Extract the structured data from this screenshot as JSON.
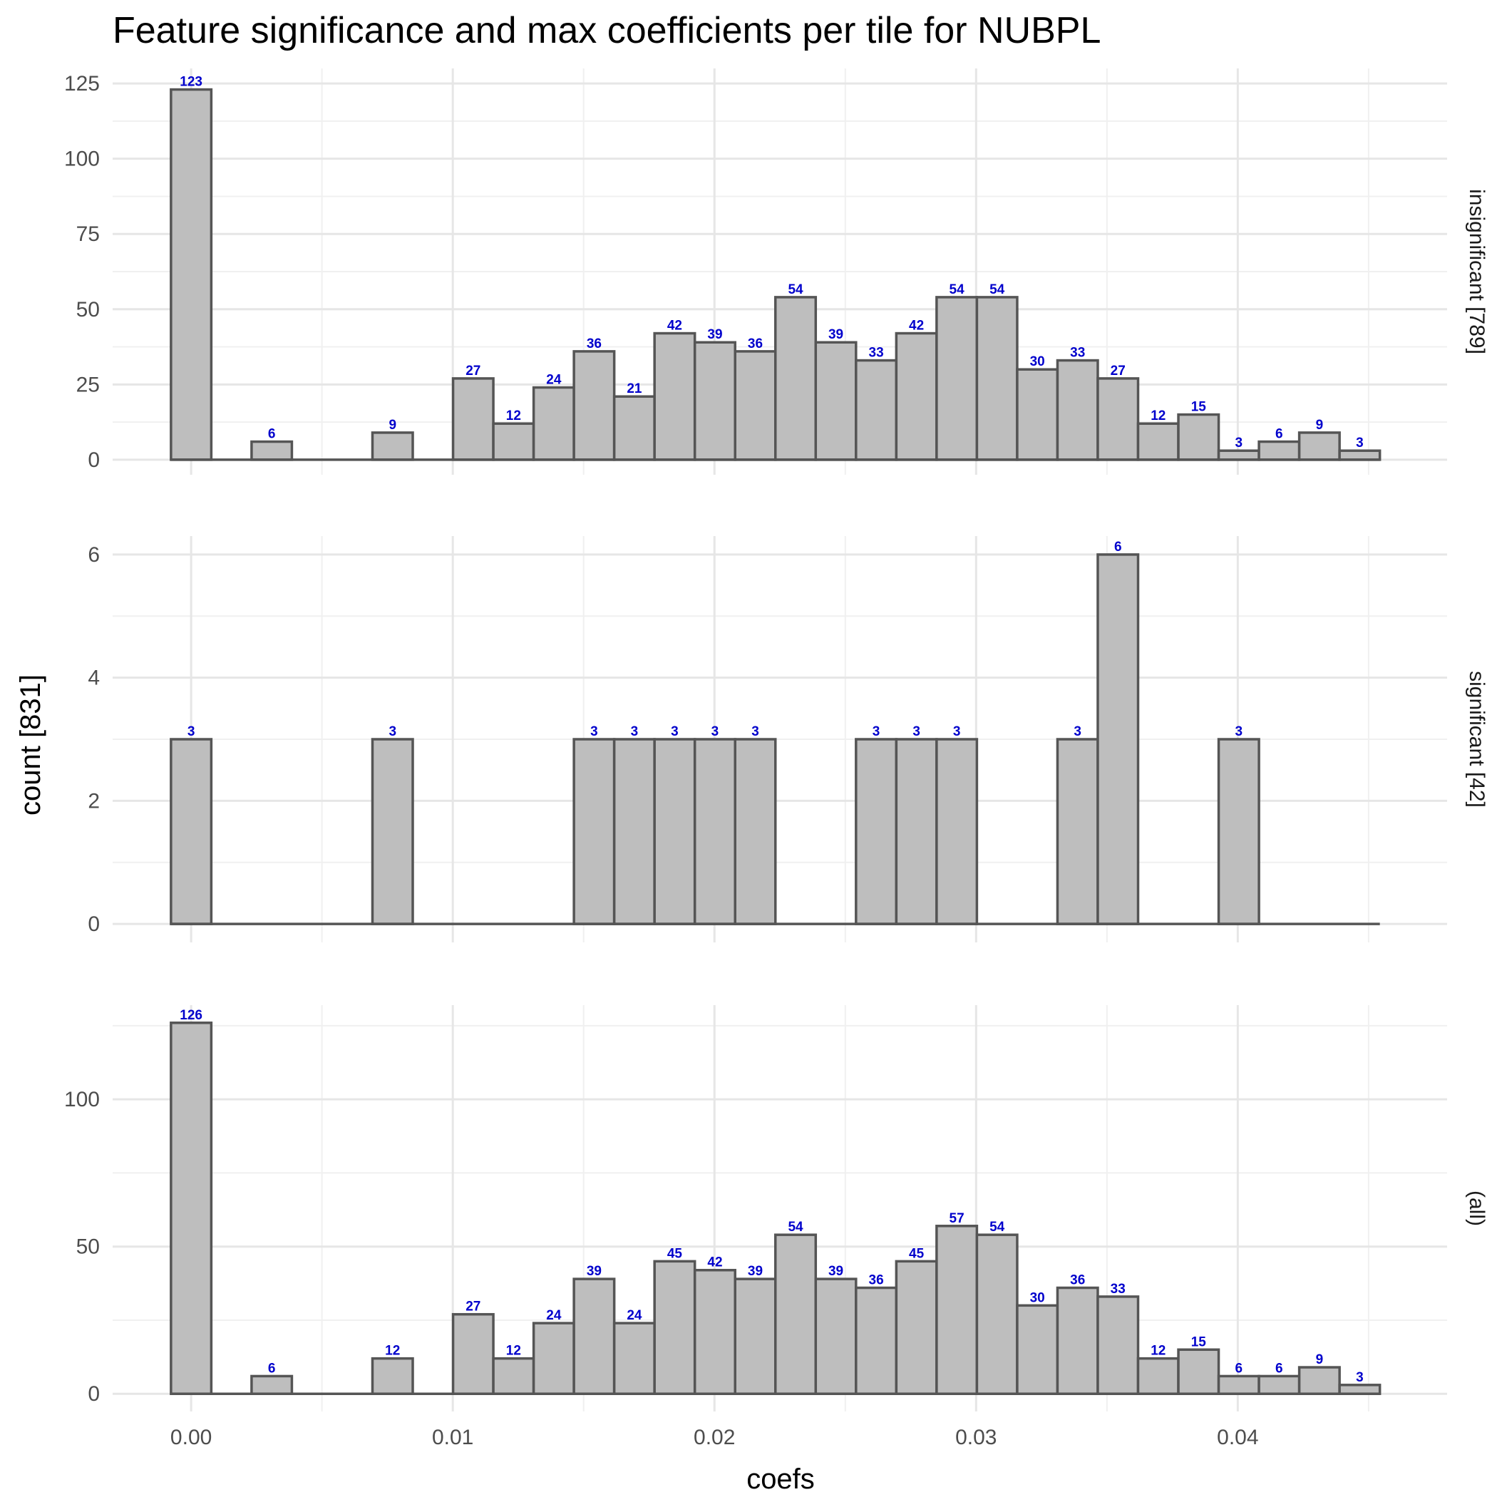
{
  "chart_data": {
    "type": "bar",
    "title": "Feature significance and max coefficients per tile for NUBPL",
    "xlabel": "coefs",
    "ylabel": "count [831]",
    "x_ticks": [
      0.0,
      0.01,
      0.02,
      0.03,
      0.04
    ],
    "x_tick_labels": [
      "0.00",
      "0.01",
      "0.02",
      "0.03",
      "0.04"
    ],
    "xlim": [
      -0.003,
      0.048
    ],
    "bin_width": 0.00154,
    "bin_centers": [
      0.0,
      0.00154,
      0.00308,
      0.00462,
      0.00616,
      0.0077,
      0.00924,
      0.01078,
      0.01232,
      0.01386,
      0.0154,
      0.01694,
      0.01848,
      0.02002,
      0.02156,
      0.0231,
      0.02464,
      0.02618,
      0.02772,
      0.02926,
      0.0308,
      0.03234,
      0.03388,
      0.03542,
      0.03696,
      0.0385,
      0.04004,
      0.04158,
      0.04312,
      0.04466
    ],
    "bar_color": "#bebebe",
    "bar_edge_color": "#555555",
    "label_color": "#0000cc",
    "panels": [
      {
        "strip": "insignificant [789]",
        "ylim": [
          -5,
          130
        ],
        "y_ticks": [
          0,
          25,
          50,
          75,
          100,
          125
        ],
        "y_tick_labels": [
          "0",
          "25",
          "50",
          "75",
          "100",
          "125"
        ],
        "values": [
          123,
          0,
          6,
          0,
          0,
          9,
          0,
          27,
          12,
          24,
          36,
          21,
          42,
          39,
          36,
          54,
          39,
          33,
          42,
          54,
          54,
          30,
          33,
          27,
          12,
          15,
          3,
          6,
          9,
          3
        ]
      },
      {
        "strip": "significant [42]",
        "ylim": [
          -0.3,
          6.3
        ],
        "y_ticks": [
          0,
          2,
          4,
          6
        ],
        "y_tick_labels": [
          "0",
          "2",
          "4",
          "6"
        ],
        "values": [
          3,
          0,
          0,
          0,
          0,
          3,
          0,
          0,
          0,
          0,
          3,
          3,
          3,
          3,
          3,
          0,
          0,
          3,
          3,
          3,
          0,
          0,
          3,
          6,
          0,
          0,
          3,
          0,
          0,
          0
        ]
      },
      {
        "strip": "(all)",
        "ylim": [
          -6,
          132
        ],
        "y_ticks": [
          0,
          50,
          100
        ],
        "y_tick_labels": [
          "0",
          "50",
          "100"
        ],
        "values": [
          126,
          0,
          6,
          0,
          0,
          12,
          0,
          27,
          12,
          24,
          39,
          24,
          45,
          42,
          39,
          54,
          39,
          36,
          45,
          57,
          54,
          30,
          36,
          33,
          12,
          15,
          6,
          6,
          9,
          3
        ]
      }
    ],
    "grid": true,
    "legend": "none"
  }
}
